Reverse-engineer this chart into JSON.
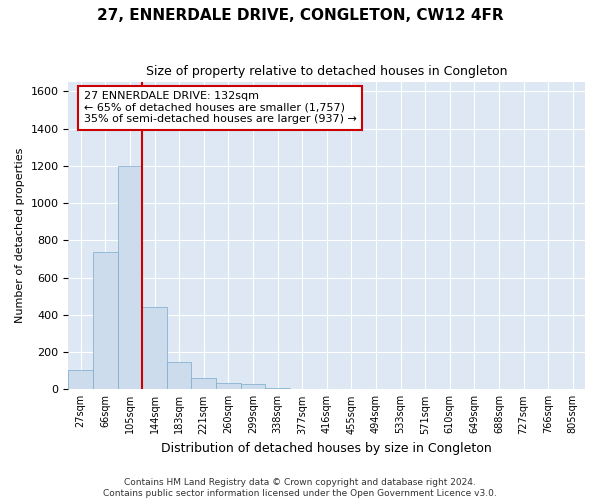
{
  "title": "27, ENNERDALE DRIVE, CONGLETON, CW12 4FR",
  "subtitle": "Size of property relative to detached houses in Congleton",
  "xlabel": "Distribution of detached houses by size in Congleton",
  "ylabel": "Number of detached properties",
  "bar_color": "#ccdcec",
  "bar_edge_color": "#7aaaca",
  "background_color": "#dde8f4",
  "grid_color": "#ffffff",
  "categories": [
    "27sqm",
    "66sqm",
    "105sqm",
    "144sqm",
    "183sqm",
    "221sqm",
    "260sqm",
    "299sqm",
    "338sqm",
    "377sqm",
    "416sqm",
    "455sqm",
    "494sqm",
    "533sqm",
    "571sqm",
    "610sqm",
    "649sqm",
    "688sqm",
    "727sqm",
    "766sqm",
    "805sqm"
  ],
  "values": [
    105,
    735,
    1200,
    440,
    145,
    60,
    35,
    30,
    5,
    1,
    0,
    0,
    0,
    0,
    0,
    0,
    0,
    0,
    0,
    0,
    0
  ],
  "ylim": [
    0,
    1650
  ],
  "yticks": [
    0,
    200,
    400,
    600,
    800,
    1000,
    1200,
    1400,
    1600
  ],
  "property_line_x": 2.5,
  "annotation_text": "27 ENNERDALE DRIVE: 132sqm\n← 65% of detached houses are smaller (1,757)\n35% of semi-detached houses are larger (937) →",
  "annotation_box_color": "#ffffff",
  "annotation_box_edge": "#cc0000",
  "line_color": "#cc0000",
  "footer": "Contains HM Land Registry data © Crown copyright and database right 2024.\nContains public sector information licensed under the Open Government Licence v3.0."
}
